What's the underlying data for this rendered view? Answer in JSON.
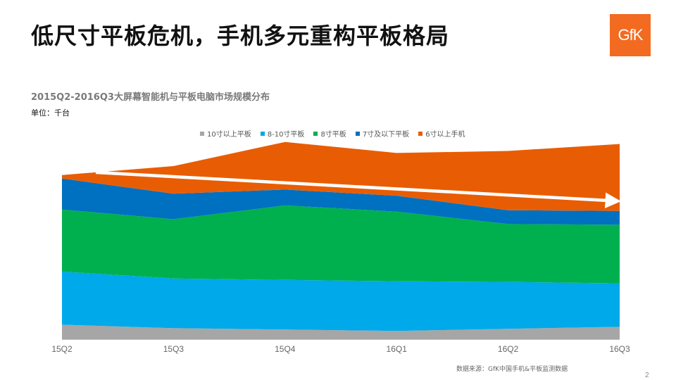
{
  "slide": {
    "title": "低尺寸平板危机，手机多元重构平板格局",
    "logo_text": "GfK",
    "page_number": "2",
    "source": "数据来源：GfK中国手机&平板监测数据"
  },
  "chart_data": {
    "type": "area",
    "stacked": true,
    "title": "2015Q2-2016Q3大屏幕智能机与平板电脑市场规模分布",
    "unit_label": "单位：千台",
    "x": [
      "15Q2",
      "15Q3",
      "15Q4",
      "16Q1",
      "16Q2",
      "16Q3"
    ],
    "legend_position": "top",
    "grid": false,
    "series": [
      {
        "name": "10寸以上平板",
        "color": "#a6a6a6",
        "values": [
          21,
          16,
          14,
          12,
          15,
          18
        ]
      },
      {
        "name": "8-10寸平板",
        "color": "#00a9e9",
        "values": [
          77,
          72,
          72,
          72,
          68,
          63
        ]
      },
      {
        "name": "8寸平板",
        "color": "#00b04f",
        "values": [
          90,
          86,
          108,
          101,
          84,
          85
        ]
      },
      {
        "name": "7寸及以下平板",
        "color": "#0070c0",
        "values": [
          45,
          37,
          23,
          23,
          20,
          20
        ]
      },
      {
        "name": "6寸以上手机",
        "color": "#e85d04",
        "values": [
          5,
          40,
          69,
          62,
          86,
          97
        ]
      }
    ],
    "annotations": [
      {
        "type": "trend-arrow",
        "color": "#ffffff",
        "x_start": "15Q2",
        "x_end": "16Q3",
        "direction": "down"
      }
    ]
  }
}
